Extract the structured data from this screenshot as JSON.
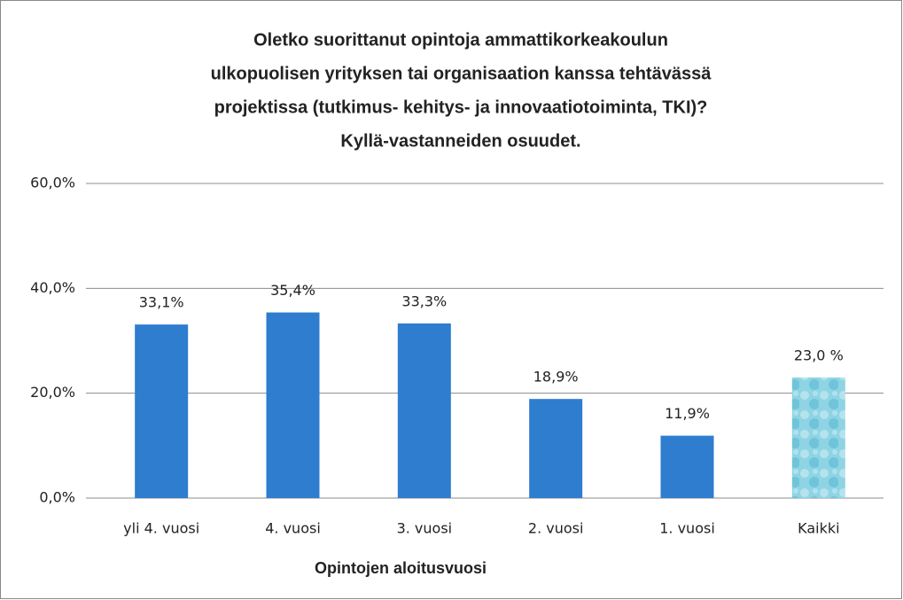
{
  "chart_data": {
    "type": "bar",
    "title": [
      "Oletko suorittanut opintoja ammattikorkeakoulun",
      "ulkopuolisen yrityksen tai organisaation kanssa tehtävässä",
      "projektissa (tutkimus- kehitys- ja innovaatiotoiminta, TKI)?",
      "Kyllä-vastanneiden osuudet."
    ],
    "x_label": "Opintojen aloitusvuosi",
    "categories": [
      "yli 4. vuosi",
      "4. vuosi",
      "3. vuosi",
      "2. vuosi",
      "1. vuosi",
      "Kaikki"
    ],
    "values": [
      33.1,
      35.4,
      33.3,
      18.9,
      11.9,
      23.0
    ],
    "value_labels": [
      "33,1%",
      "35,4%",
      "33,3%",
      "18,9%",
      "11,9%",
      "23,0 %"
    ],
    "colors": [
      "#2e7dcf",
      "#2e7dcf",
      "#2e7dcf",
      "#2e7dcf",
      "#2e7dcf",
      "#8ed4e4"
    ],
    "ylim": [
      0,
      60
    ],
    "yticks": [
      {
        "value": 0,
        "label": "0,0%"
      },
      {
        "value": 20,
        "label": "20,0%"
      },
      {
        "value": 40,
        "label": "40,0%"
      },
      {
        "value": 60,
        "label": "60,0%"
      }
    ],
    "grid": true
  }
}
